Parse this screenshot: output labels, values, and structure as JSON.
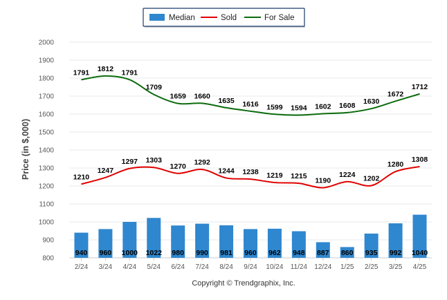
{
  "chart_data": {
    "type": "bar",
    "categories": [
      "2/24",
      "3/24",
      "4/24",
      "5/24",
      "6/24",
      "7/24",
      "8/24",
      "9/24",
      "10/24",
      "11/24",
      "12/24",
      "1/25",
      "2/25",
      "3/25",
      "4/25"
    ],
    "series": [
      {
        "name": "Median",
        "type": "bar",
        "color": "#2f87cf",
        "values": [
          940,
          960,
          1000,
          1022,
          980,
          990,
          981,
          960,
          962,
          948,
          887,
          860,
          935,
          992,
          1040
        ]
      },
      {
        "name": "Sold",
        "type": "line",
        "color": "#e10000",
        "values": [
          1210,
          1247,
          1297,
          1303,
          1270,
          1292,
          1244,
          1238,
          1219,
          1215,
          1190,
          1224,
          1202,
          1280,
          1308
        ]
      },
      {
        "name": "For Sale",
        "type": "line",
        "color": "#0b6b0b",
        "values": [
          1791,
          1812,
          1791,
          1709,
          1659,
          1660,
          1635,
          1616,
          1599,
          1594,
          1602,
          1608,
          1630,
          1672,
          1712
        ]
      }
    ],
    "ylabel": "Price (in $,000)",
    "ylim": [
      800,
      2000
    ],
    "yticks": [
      800,
      900,
      1000,
      1100,
      1200,
      1300,
      1400,
      1500,
      1600,
      1700,
      1800,
      1900,
      2000
    ],
    "grid": true,
    "legend_position": "top-center"
  },
  "footer": {
    "copyright": "Copyright © Trendgraphix, Inc."
  }
}
